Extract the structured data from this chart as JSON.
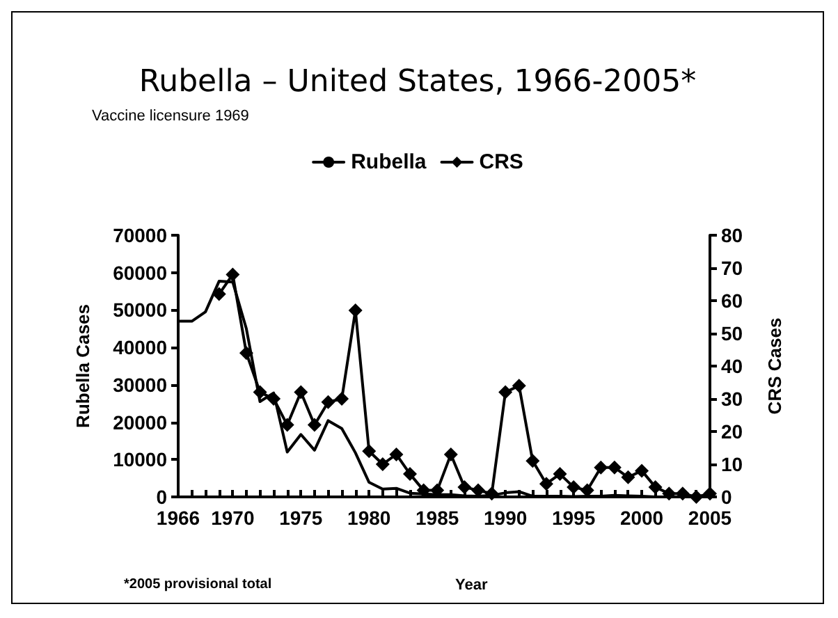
{
  "chart_data": {
    "type": "line",
    "title": "Rubella – United States, 1966-2005*",
    "subtitle": "Vaccine licensure 1969",
    "xlabel": "Year",
    "ylabel": "Rubella Cases",
    "y2label": "CRS Cases",
    "annotations": [
      "*2005 provisional total"
    ],
    "x": [
      1966,
      1967,
      1968,
      1969,
      1970,
      1971,
      1972,
      1973,
      1974,
      1975,
      1976,
      1977,
      1978,
      1979,
      1980,
      1981,
      1982,
      1983,
      1984,
      1985,
      1986,
      1987,
      1988,
      1989,
      1990,
      1991,
      1992,
      1993,
      1994,
      1995,
      1996,
      1997,
      1998,
      1999,
      2000,
      2001,
      2002,
      2003,
      2004,
      2005
    ],
    "series": [
      {
        "name": "Rubella",
        "color": "#000000",
        "marker": "none",
        "values": [
          47000,
          47000,
          49500,
          57700,
          57500,
          45000,
          25500,
          27800,
          12000,
          16700,
          12500,
          20400,
          18300,
          11800,
          3900,
          2100,
          2300,
          1000,
          800,
          600,
          600,
          300,
          200,
          400,
          1100,
          1400,
          200,
          200,
          200,
          100,
          200,
          200,
          400,
          300,
          200,
          0,
          0,
          0,
          0,
          0
        ]
      },
      {
        "name": "CRS",
        "color": "#000000",
        "marker": "diamond",
        "axis": "y2",
        "values": [
          null,
          null,
          null,
          62,
          68,
          44,
          32,
          30,
          22,
          32,
          22,
          29,
          30,
          57,
          14,
          10,
          13,
          7,
          2,
          2,
          13,
          3,
          2,
          1,
          32,
          34,
          11,
          4,
          7,
          3,
          2,
          9,
          9,
          6,
          8,
          3,
          1,
          1,
          0,
          1
        ]
      }
    ],
    "xlim": [
      1966,
      2005
    ],
    "xticks": [
      1966,
      {
        "value": 1967,
        "label": null
      },
      {
        "value": 1968,
        "label": null
      },
      {
        "value": 1969,
        "label": null
      },
      1970,
      {
        "value": 1971,
        "label": null
      },
      {
        "value": 1972,
        "label": null
      },
      {
        "value": 1973,
        "label": null
      },
      {
        "value": 1974,
        "label": null
      },
      1975,
      {
        "value": 1976,
        "label": null
      },
      {
        "value": 1977,
        "label": null
      },
      {
        "value": 1978,
        "label": null
      },
      {
        "value": 1979,
        "label": null
      },
      1980,
      {
        "value": 1981,
        "label": null
      },
      {
        "value": 1982,
        "label": null
      },
      {
        "value": 1983,
        "label": null
      },
      {
        "value": 1984,
        "label": null
      },
      1985,
      {
        "value": 1986,
        "label": null
      },
      {
        "value": 1987,
        "label": null
      },
      {
        "value": 1988,
        "label": null
      },
      {
        "value": 1989,
        "label": null
      },
      1990,
      {
        "value": 1991,
        "label": null
      },
      {
        "value": 1992,
        "label": null
      },
      {
        "value": 1993,
        "label": null
      },
      {
        "value": 1994,
        "label": null
      },
      1995,
      {
        "value": 1996,
        "label": null
      },
      {
        "value": 1997,
        "label": null
      },
      {
        "value": 1998,
        "label": null
      },
      {
        "value": 1999,
        "label": null
      },
      2000,
      {
        "value": 2001,
        "label": null
      },
      {
        "value": 2002,
        "label": null
      },
      {
        "value": 2003,
        "label": null
      },
      {
        "value": 2004,
        "label": null
      },
      2005
    ],
    "ylim": [
      0,
      70000
    ],
    "yticks": [
      0,
      10000,
      20000,
      30000,
      40000,
      50000,
      60000,
      70000
    ],
    "y2lim": [
      0,
      80
    ],
    "y2ticks": [
      0,
      10,
      20,
      30,
      40,
      50,
      60,
      70,
      80
    ],
    "grid": false,
    "legend": "top"
  }
}
